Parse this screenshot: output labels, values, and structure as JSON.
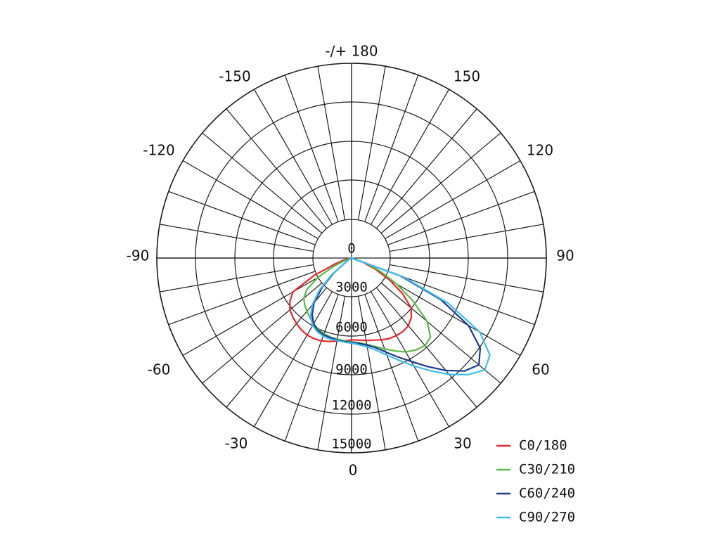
{
  "chart_data": {
    "type": "polar",
    "angle_labels": [
      {
        "angle": 180,
        "text": "-/+ 180"
      },
      {
        "angle": 150,
        "text": "150"
      },
      {
        "angle": -150,
        "text": "-150"
      },
      {
        "angle": 120,
        "text": "120"
      },
      {
        "angle": -120,
        "text": "-120"
      },
      {
        "angle": 90,
        "text": "90"
      },
      {
        "angle": -90,
        "text": "-90"
      },
      {
        "angle": 60,
        "text": "60"
      },
      {
        "angle": -60,
        "text": "-60"
      },
      {
        "angle": 30,
        "text": "30"
      },
      {
        "angle": -30,
        "text": "-30"
      },
      {
        "angle": 0,
        "text": "0"
      }
    ],
    "radial_ticks": [
      0,
      3000,
      6000,
      9000,
      12000,
      15000
    ],
    "radial_labels": [
      "0",
      "3000",
      "6000",
      "9000",
      "12000",
      "15000"
    ],
    "rmax": 15000,
    "spoke_step_deg": 10,
    "series": [
      {
        "name": "C0/180",
        "color": "#e8262b",
        "points": [
          [
            -76,
            600
          ],
          [
            -70,
            1400
          ],
          [
            -65,
            3200
          ],
          [
            -60,
            5200
          ],
          [
            -55,
            5800
          ],
          [
            -50,
            6200
          ],
          [
            -45,
            6400
          ],
          [
            -40,
            6600
          ],
          [
            -35,
            6750
          ],
          [
            -30,
            6850
          ],
          [
            -25,
            6850
          ],
          [
            -20,
            6800
          ],
          [
            -15,
            6650
          ],
          [
            -10,
            6500
          ],
          [
            -5,
            6400
          ],
          [
            0,
            6300
          ],
          [
            5,
            6350
          ],
          [
            10,
            6450
          ],
          [
            15,
            6550
          ],
          [
            20,
            6700
          ],
          [
            25,
            6850
          ],
          [
            30,
            6900
          ],
          [
            35,
            6900
          ],
          [
            40,
            6800
          ],
          [
            45,
            6500
          ],
          [
            50,
            6000
          ],
          [
            55,
            4800
          ],
          [
            60,
            3400
          ],
          [
            65,
            2000
          ],
          [
            70,
            900
          ],
          [
            76,
            0
          ]
        ]
      },
      {
        "name": "C30/210",
        "color": "#5ab947",
        "points": [
          [
            -70,
            600
          ],
          [
            -65,
            1600
          ],
          [
            -60,
            3000
          ],
          [
            -55,
            4200
          ],
          [
            -50,
            4800
          ],
          [
            -45,
            5100
          ],
          [
            -40,
            5350
          ],
          [
            -35,
            5600
          ],
          [
            -30,
            5850
          ],
          [
            -25,
            6050
          ],
          [
            -20,
            6200
          ],
          [
            -15,
            6300
          ],
          [
            -10,
            6350
          ],
          [
            -5,
            6400
          ],
          [
            0,
            6450
          ],
          [
            5,
            6550
          ],
          [
            10,
            6750
          ],
          [
            15,
            7050
          ],
          [
            20,
            7450
          ],
          [
            25,
            7900
          ],
          [
            30,
            8350
          ],
          [
            35,
            8650
          ],
          [
            40,
            8800
          ],
          [
            45,
            8600
          ],
          [
            50,
            7600
          ],
          [
            55,
            5800
          ],
          [
            60,
            4000
          ],
          [
            65,
            2500
          ],
          [
            70,
            1300
          ],
          [
            76,
            0
          ]
        ]
      },
      {
        "name": "C60/240",
        "color": "#1a3a8f",
        "points": [
          [
            -60,
            300
          ],
          [
            -50,
            1800
          ],
          [
            -45,
            3200
          ],
          [
            -40,
            4500
          ],
          [
            -35,
            5300
          ],
          [
            -30,
            5850
          ],
          [
            -25,
            6150
          ],
          [
            -20,
            6300
          ],
          [
            -15,
            6350
          ],
          [
            -10,
            6400
          ],
          [
            -5,
            6450
          ],
          [
            0,
            6500
          ],
          [
            5,
            6600
          ],
          [
            10,
            6800
          ],
          [
            15,
            7150
          ],
          [
            20,
            7700
          ],
          [
            25,
            8400
          ],
          [
            30,
            9200
          ],
          [
            35,
            10200
          ],
          [
            40,
            11300
          ],
          [
            45,
            12300
          ],
          [
            50,
            12800
          ],
          [
            55,
            12100
          ],
          [
            60,
            10400
          ],
          [
            65,
            7600
          ],
          [
            70,
            4000
          ],
          [
            76,
            0
          ]
        ]
      },
      {
        "name": "C90/270",
        "color": "#3dbcea",
        "points": [
          [
            -60,
            300
          ],
          [
            -50,
            2000
          ],
          [
            -45,
            3500
          ],
          [
            -40,
            4700
          ],
          [
            -35,
            5500
          ],
          [
            -30,
            6000
          ],
          [
            -25,
            6250
          ],
          [
            -20,
            6400
          ],
          [
            -15,
            6450
          ],
          [
            -10,
            6450
          ],
          [
            -5,
            6500
          ],
          [
            0,
            6550
          ],
          [
            5,
            6700
          ],
          [
            10,
            6950
          ],
          [
            15,
            7350
          ],
          [
            20,
            7950
          ],
          [
            25,
            8700
          ],
          [
            30,
            9600
          ],
          [
            35,
            10600
          ],
          [
            40,
            11700
          ],
          [
            45,
            12700
          ],
          [
            50,
            13400
          ],
          [
            55,
            13000
          ],
          [
            60,
            11400
          ],
          [
            65,
            8200
          ],
          [
            70,
            4200
          ],
          [
            76,
            0
          ]
        ]
      }
    ],
    "legend_position": "bottom-right",
    "grid": true
  }
}
